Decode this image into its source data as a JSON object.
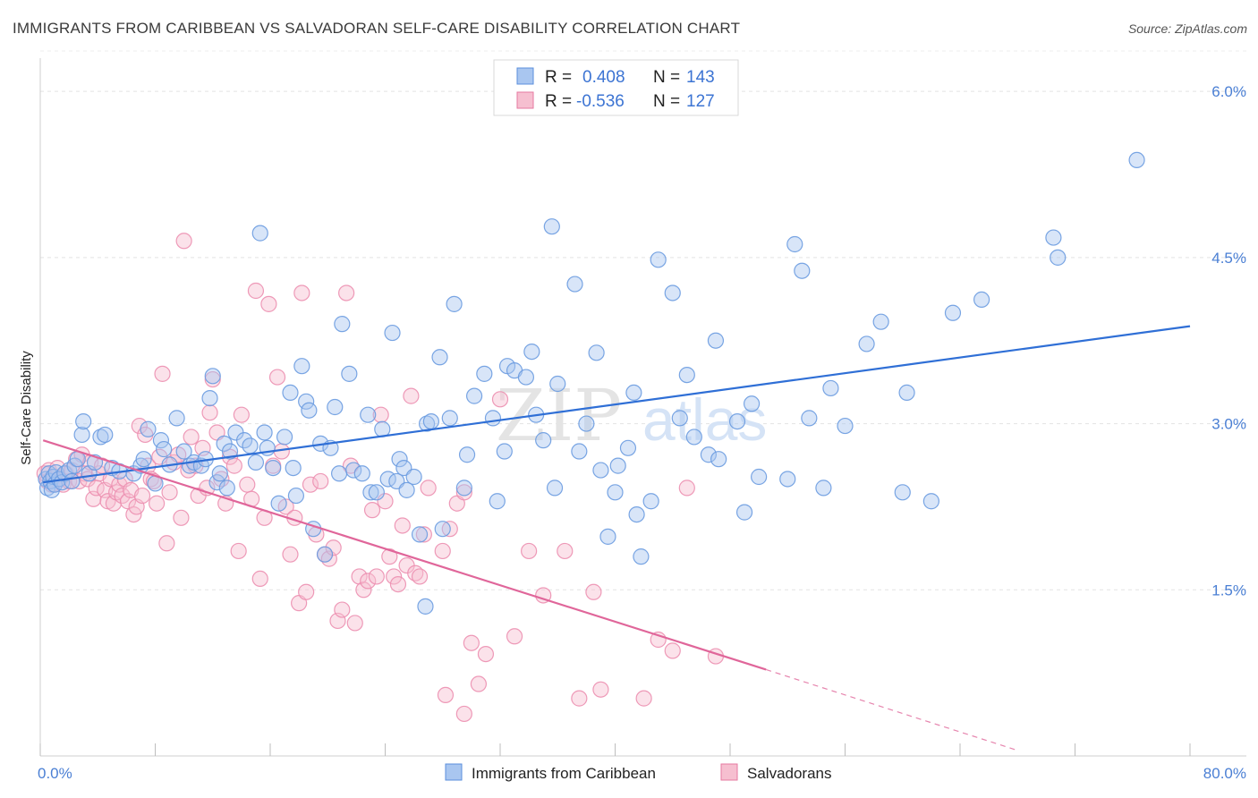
{
  "title": "IMMIGRANTS FROM CARIBBEAN VS SALVADORAN SELF-CARE DISABILITY CORRELATION CHART",
  "source": "Source: ZipAtlas.com",
  "watermark": {
    "part1": "ZIP",
    "part2": "atlas"
  },
  "stats": [
    {
      "r_label": "R =",
      "r": "0.408",
      "n_label": "N =",
      "n": "143",
      "color": "#a9c6f0",
      "stroke": "#5b8fdc"
    },
    {
      "r_label": "R =",
      "r": "-0.536",
      "n_label": "N =",
      "n": "127",
      "color": "#f6bfd0",
      "stroke": "#e67aa0"
    }
  ],
  "chart_data": {
    "type": "scatter",
    "ylabel": "Self-Care Disability",
    "xlabel": "",
    "xlim": [
      0,
      80
    ],
    "ylim": [
      0,
      6.3
    ],
    "x_tick_labels": [
      "0.0%",
      "80.0%"
    ],
    "y_ticks": [
      1.5,
      3.0,
      4.5,
      6.0
    ],
    "y_tick_labels": [
      "1.5%",
      "3.0%",
      "4.5%",
      "6.0%"
    ],
    "grid": "horizontal dashed",
    "legend_position": "bottom-center",
    "series": [
      {
        "name": "Immigrants from Caribbean",
        "color": "#a9c6f0",
        "stroke": "#6a9be0",
        "line_color": "#2f6fd6",
        "trend": {
          "x0": 0.2,
          "y0": 2.47,
          "x1": 80,
          "y1": 3.88
        },
        "points": [
          [
            0.4,
            2.5
          ],
          [
            0.5,
            2.42
          ],
          [
            0.6,
            2.55
          ],
          [
            0.7,
            2.48
          ],
          [
            0.8,
            2.4
          ],
          [
            0.9,
            2.52
          ],
          [
            1.0,
            2.45
          ],
          [
            1.1,
            2.56
          ],
          [
            1.3,
            2.5
          ],
          [
            1.5,
            2.47
          ],
          [
            1.7,
            2.55
          ],
          [
            2.0,
            2.58
          ],
          [
            2.2,
            2.48
          ],
          [
            2.4,
            2.62
          ],
          [
            2.6,
            2.68
          ],
          [
            2.9,
            2.9
          ],
          [
            3.0,
            3.02
          ],
          [
            3.4,
            2.55
          ],
          [
            3.8,
            2.65
          ],
          [
            4.2,
            2.88
          ],
          [
            4.5,
            2.9
          ],
          [
            5.0,
            2.6
          ],
          [
            5.5,
            2.57
          ],
          [
            6.5,
            2.55
          ],
          [
            7.0,
            2.62
          ],
          [
            7.2,
            2.68
          ],
          [
            7.5,
            2.95
          ],
          [
            8.0,
            2.46
          ],
          [
            8.4,
            2.85
          ],
          [
            8.6,
            2.77
          ],
          [
            9.0,
            2.63
          ],
          [
            9.5,
            3.05
          ],
          [
            10.0,
            2.75
          ],
          [
            10.4,
            2.62
          ],
          [
            10.7,
            2.65
          ],
          [
            11.2,
            2.62
          ],
          [
            11.5,
            2.68
          ],
          [
            11.8,
            3.23
          ],
          [
            12.0,
            3.43
          ],
          [
            12.3,
            2.47
          ],
          [
            12.5,
            2.55
          ],
          [
            12.8,
            2.82
          ],
          [
            13.0,
            2.42
          ],
          [
            13.2,
            2.75
          ],
          [
            13.6,
            2.92
          ],
          [
            14.2,
            2.85
          ],
          [
            14.6,
            2.8
          ],
          [
            15.0,
            2.65
          ],
          [
            15.3,
            4.72
          ],
          [
            15.6,
            2.92
          ],
          [
            15.8,
            2.78
          ],
          [
            16.2,
            2.6
          ],
          [
            16.6,
            2.28
          ],
          [
            17.0,
            2.88
          ],
          [
            17.4,
            3.28
          ],
          [
            17.6,
            2.6
          ],
          [
            17.8,
            2.35
          ],
          [
            18.2,
            3.52
          ],
          [
            18.5,
            3.2
          ],
          [
            18.7,
            3.12
          ],
          [
            19.0,
            2.05
          ],
          [
            19.5,
            2.82
          ],
          [
            19.8,
            1.82
          ],
          [
            20.2,
            2.78
          ],
          [
            20.5,
            3.15
          ],
          [
            20.8,
            2.55
          ],
          [
            21.0,
            3.9
          ],
          [
            21.5,
            3.45
          ],
          [
            21.8,
            2.58
          ],
          [
            22.4,
            2.55
          ],
          [
            22.8,
            3.08
          ],
          [
            23.0,
            2.38
          ],
          [
            23.4,
            2.38
          ],
          [
            23.8,
            2.95
          ],
          [
            24.2,
            2.5
          ],
          [
            24.5,
            3.82
          ],
          [
            24.8,
            2.48
          ],
          [
            25.0,
            2.68
          ],
          [
            25.3,
            2.6
          ],
          [
            25.5,
            2.4
          ],
          [
            26.0,
            2.52
          ],
          [
            26.4,
            2.0
          ],
          [
            26.8,
            1.35
          ],
          [
            26.9,
            3.0
          ],
          [
            27.2,
            3.02
          ],
          [
            27.8,
            3.6
          ],
          [
            28.0,
            2.05
          ],
          [
            28.5,
            3.05
          ],
          [
            28.8,
            4.08
          ],
          [
            29.5,
            2.42
          ],
          [
            29.7,
            2.72
          ],
          [
            30.2,
            3.25
          ],
          [
            30.9,
            3.45
          ],
          [
            31.5,
            3.05
          ],
          [
            31.8,
            2.3
          ],
          [
            32.3,
            2.75
          ],
          [
            32.5,
            3.52
          ],
          [
            33.0,
            3.48
          ],
          [
            33.8,
            3.42
          ],
          [
            34.2,
            3.65
          ],
          [
            34.5,
            3.08
          ],
          [
            35.0,
            2.85
          ],
          [
            35.6,
            4.78
          ],
          [
            35.8,
            2.42
          ],
          [
            36.0,
            3.36
          ],
          [
            37.2,
            4.26
          ],
          [
            37.5,
            2.75
          ],
          [
            38.0,
            3.0
          ],
          [
            38.7,
            3.64
          ],
          [
            39.0,
            2.58
          ],
          [
            39.5,
            1.98
          ],
          [
            40.0,
            2.38
          ],
          [
            40.2,
            2.62
          ],
          [
            40.9,
            2.78
          ],
          [
            41.3,
            3.28
          ],
          [
            41.5,
            2.18
          ],
          [
            41.8,
            1.8
          ],
          [
            42.5,
            2.3
          ],
          [
            43.0,
            4.48
          ],
          [
            44.0,
            4.18
          ],
          [
            44.5,
            3.05
          ],
          [
            45.0,
            3.44
          ],
          [
            45.5,
            2.88
          ],
          [
            46.5,
            2.72
          ],
          [
            47.0,
            3.75
          ],
          [
            47.2,
            2.68
          ],
          [
            48.5,
            3.02
          ],
          [
            49.0,
            2.2
          ],
          [
            49.5,
            3.18
          ],
          [
            50.0,
            2.52
          ],
          [
            52.0,
            2.5
          ],
          [
            52.5,
            4.62
          ],
          [
            53.0,
            4.38
          ],
          [
            53.5,
            3.05
          ],
          [
            54.5,
            2.42
          ],
          [
            55.0,
            3.32
          ],
          [
            56.0,
            2.98
          ],
          [
            57.5,
            3.72
          ],
          [
            58.5,
            3.92
          ],
          [
            60.0,
            2.38
          ],
          [
            60.3,
            3.28
          ],
          [
            62.0,
            2.3
          ],
          [
            63.5,
            4.0
          ],
          [
            65.5,
            4.12
          ],
          [
            70.5,
            4.68
          ],
          [
            70.8,
            4.5
          ],
          [
            76.3,
            5.38
          ]
        ]
      },
      {
        "name": "Salvadorans",
        "color": "#f6bfd0",
        "stroke": "#ec8fb0",
        "line_color": "#e0669a",
        "trend": {
          "x0": 0.2,
          "y0": 2.85,
          "x1": 50.5,
          "y1": 0.78
        },
        "trend_dashed": {
          "x0": 50.5,
          "y0": 0.78,
          "x1": 68,
          "y1": 0.05
        },
        "points": [
          [
            0.3,
            2.55
          ],
          [
            0.5,
            2.48
          ],
          [
            0.6,
            2.58
          ],
          [
            0.8,
            2.45
          ],
          [
            1.0,
            2.52
          ],
          [
            1.2,
            2.6
          ],
          [
            1.4,
            2.5
          ],
          [
            1.6,
            2.45
          ],
          [
            1.8,
            2.55
          ],
          [
            2.0,
            2.48
          ],
          [
            2.2,
            2.58
          ],
          [
            2.5,
            2.68
          ],
          [
            2.7,
            2.48
          ],
          [
            2.9,
            2.72
          ],
          [
            3.1,
            2.55
          ],
          [
            3.3,
            2.5
          ],
          [
            3.5,
            2.65
          ],
          [
            3.7,
            2.32
          ],
          [
            3.9,
            2.42
          ],
          [
            4.1,
            2.55
          ],
          [
            4.3,
            2.62
          ],
          [
            4.5,
            2.4
          ],
          [
            4.7,
            2.3
          ],
          [
            4.9,
            2.5
          ],
          [
            5.1,
            2.28
          ],
          [
            5.3,
            2.38
          ],
          [
            5.5,
            2.45
          ],
          [
            5.7,
            2.35
          ],
          [
            5.9,
            2.5
          ],
          [
            6.1,
            2.3
          ],
          [
            6.3,
            2.4
          ],
          [
            6.5,
            2.18
          ],
          [
            6.7,
            2.25
          ],
          [
            6.9,
            2.98
          ],
          [
            7.1,
            2.35
          ],
          [
            7.3,
            2.9
          ],
          [
            7.5,
            2.62
          ],
          [
            7.7,
            2.5
          ],
          [
            7.9,
            2.48
          ],
          [
            8.1,
            2.28
          ],
          [
            8.3,
            2.7
          ],
          [
            8.5,
            3.45
          ],
          [
            8.8,
            1.92
          ],
          [
            9.0,
            2.38
          ],
          [
            9.3,
            2.65
          ],
          [
            9.6,
            2.72
          ],
          [
            9.8,
            2.15
          ],
          [
            10.0,
            4.65
          ],
          [
            10.3,
            2.58
          ],
          [
            10.5,
            2.88
          ],
          [
            10.8,
            2.62
          ],
          [
            11.0,
            2.35
          ],
          [
            11.3,
            2.78
          ],
          [
            11.6,
            2.42
          ],
          [
            11.8,
            3.1
          ],
          [
            12.0,
            3.4
          ],
          [
            12.3,
            2.92
          ],
          [
            12.6,
            2.5
          ],
          [
            12.9,
            2.28
          ],
          [
            13.2,
            2.7
          ],
          [
            13.5,
            2.62
          ],
          [
            13.8,
            1.85
          ],
          [
            14.0,
            3.08
          ],
          [
            14.4,
            2.45
          ],
          [
            14.7,
            2.32
          ],
          [
            15.0,
            4.2
          ],
          [
            15.3,
            1.6
          ],
          [
            15.6,
            2.15
          ],
          [
            15.9,
            4.08
          ],
          [
            16.2,
            2.62
          ],
          [
            16.5,
            3.42
          ],
          [
            16.8,
            2.75
          ],
          [
            17.1,
            2.25
          ],
          [
            17.4,
            1.82
          ],
          [
            17.7,
            2.15
          ],
          [
            18.0,
            1.38
          ],
          [
            18.2,
            4.18
          ],
          [
            18.5,
            1.48
          ],
          [
            18.8,
            2.45
          ],
          [
            19.2,
            2.0
          ],
          [
            19.5,
            2.48
          ],
          [
            19.8,
            1.82
          ],
          [
            20.1,
            1.78
          ],
          [
            20.4,
            1.88
          ],
          [
            20.7,
            1.22
          ],
          [
            21.0,
            1.32
          ],
          [
            21.3,
            4.18
          ],
          [
            21.6,
            2.62
          ],
          [
            21.9,
            1.2
          ],
          [
            22.2,
            1.62
          ],
          [
            22.5,
            1.5
          ],
          [
            22.8,
            1.58
          ],
          [
            23.1,
            2.22
          ],
          [
            23.4,
            1.62
          ],
          [
            23.7,
            3.08
          ],
          [
            24.0,
            2.3
          ],
          [
            24.3,
            1.8
          ],
          [
            24.6,
            1.62
          ],
          [
            24.9,
            1.55
          ],
          [
            25.2,
            2.08
          ],
          [
            25.5,
            1.72
          ],
          [
            25.8,
            3.25
          ],
          [
            26.1,
            1.65
          ],
          [
            26.4,
            1.62
          ],
          [
            26.7,
            2.0
          ],
          [
            27.0,
            2.42
          ],
          [
            28.0,
            1.85
          ],
          [
            28.5,
            2.05
          ],
          [
            29.0,
            2.28
          ],
          [
            29.5,
            2.38
          ],
          [
            30.0,
            1.02
          ],
          [
            30.5,
            0.65
          ],
          [
            31.0,
            0.92
          ],
          [
            32.0,
            3.22
          ],
          [
            33.0,
            1.08
          ],
          [
            34.0,
            1.85
          ],
          [
            35.0,
            1.45
          ],
          [
            36.5,
            1.85
          ],
          [
            37.5,
            0.52
          ],
          [
            38.5,
            1.48
          ],
          [
            39.0,
            0.6
          ],
          [
            42.0,
            0.52
          ],
          [
            43.0,
            1.05
          ],
          [
            44.0,
            0.95
          ],
          [
            45.0,
            2.42
          ],
          [
            47.0,
            0.9
          ],
          [
            29.5,
            0.38
          ],
          [
            28.2,
            0.55
          ]
        ]
      }
    ]
  }
}
